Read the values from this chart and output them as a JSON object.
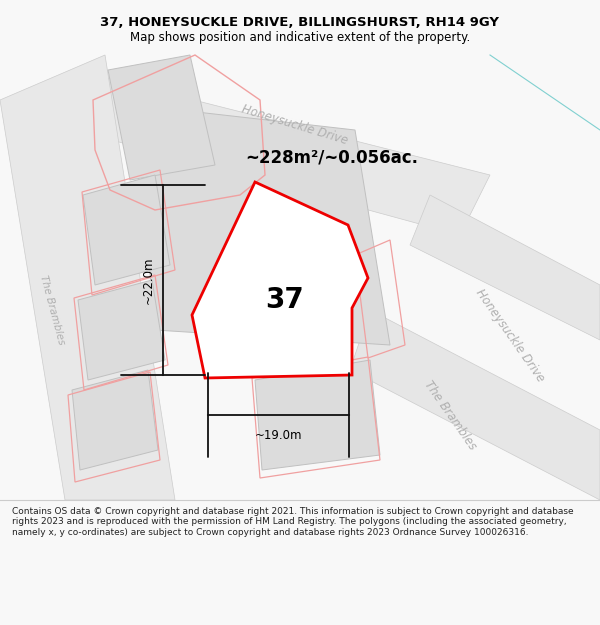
{
  "title_line1": "37, HONEYSUCKLE DRIVE, BILLINGSHURST, RH14 9GY",
  "title_line2": "Map shows position and indicative extent of the property.",
  "area_label": "~228m²/~0.056ac.",
  "number_label": "37",
  "dim_width": "~19.0m",
  "dim_height": "~22.0m",
  "footer_text": "Contains OS data © Crown copyright and database right 2021. This information is subject to Crown copyright and database rights 2023 and is reproduced with the permission of HM Land Registry. The polygons (including the associated geometry, namely x, y co-ordinates) are subject to Crown copyright and database rights 2023 Ordnance Survey 100026316.",
  "bg_color": "#f8f8f8",
  "map_bg": "#ffffff",
  "gray_fill": "#e0e0e0",
  "gray_edge": "#c8c8c8",
  "red_light": "#f0a0a0",
  "red_main": "#ee0000",
  "dim_color": "#111111",
  "road_text_color": "#b0b0b0",
  "cyan_line": "#80d0d0",
  "road_label_top": "Honeysuckle Drive",
  "road_label_right": "Honeysuckle Drive",
  "road_label_mid": "The Brambles",
  "road_label_left": "The Brambles"
}
